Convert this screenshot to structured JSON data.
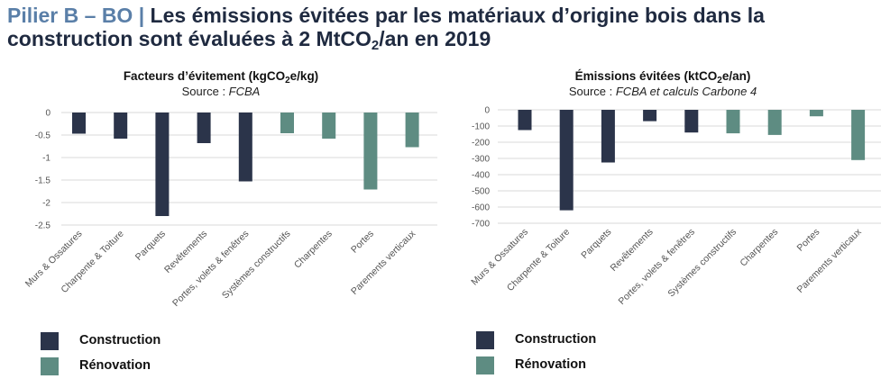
{
  "header": {
    "prefix": "Pilier B – BO",
    "separator": "|",
    "line1": "Les émissions évitées par les matériaux d’origine bois dans la",
    "line2_before_sub": "construction sont évaluées à 2 MtCO",
    "line2_sub": "2",
    "line2_after_sub": "/an en 2019"
  },
  "colors": {
    "construction": "#2b344a",
    "renovation": "#5e8c82",
    "grid": "#d9d9d9",
    "axis_text": "#555555"
  },
  "legend": {
    "construction": "Construction",
    "renovation": "Rénovation"
  },
  "chart_data": [
    {
      "type": "bar",
      "title_before_sub": "Facteurs d’évitement (kgCO",
      "title_sub": "2",
      "title_after_sub": "e/kg)",
      "source_prefix": "Source : ",
      "source_italic": "FCBA",
      "categories": [
        "Murs & Ossatures",
        "Charpente & Toiture",
        "Parquets",
        "Revêtements",
        "Portes, volets & fenêtres",
        "Systèmes constructifs",
        "Charpentes",
        "Portes",
        "Parements verticaux"
      ],
      "values": [
        -0.47,
        -0.58,
        -2.3,
        -0.68,
        -1.53,
        -0.46,
        -0.58,
        -1.71,
        -0.77
      ],
      "groups": [
        "construction",
        "construction",
        "construction",
        "construction",
        "construction",
        "renovation",
        "renovation",
        "renovation",
        "renovation"
      ],
      "ylim": [
        -2.5,
        0
      ],
      "yticks": [
        0,
        -0.5,
        -1,
        -1.5,
        -2,
        -2.5
      ],
      "ytick_labels": [
        "0",
        "-0.5",
        "-1",
        "-1.5",
        "-2",
        "-2.5"
      ],
      "grid": true
    },
    {
      "type": "bar",
      "title_before_sub": "Émissions évitées (ktCO",
      "title_sub": "2",
      "title_after_sub": "e/an)",
      "source_prefix": "Source : ",
      "source_italic": "FCBA et calculs Carbone 4",
      "categories": [
        "Murs & Ossatures",
        "Charpente & Toiture",
        "Parquets",
        "Revêtements",
        "Portes, volets & fenêtres",
        "Systèmes constructifs",
        "Charpentes",
        "Portes",
        "Parements verticaux"
      ],
      "values": [
        -125,
        -620,
        -325,
        -70,
        -140,
        -145,
        -155,
        -40,
        -310
      ],
      "groups": [
        "construction",
        "construction",
        "construction",
        "construction",
        "construction",
        "renovation",
        "renovation",
        "renovation",
        "renovation"
      ],
      "ylim": [
        -700,
        0
      ],
      "yticks": [
        0,
        -100,
        -200,
        -300,
        -400,
        -500,
        -600,
        -700
      ],
      "ytick_labels": [
        "0",
        "-100",
        "-200",
        "-300",
        "-400",
        "-500",
        "-600",
        "-700"
      ],
      "grid": true
    }
  ]
}
